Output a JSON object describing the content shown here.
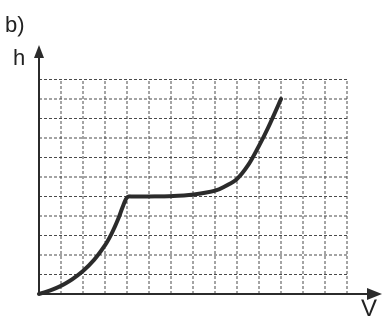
{
  "panel_label": "b)",
  "chart_data": {
    "type": "line",
    "title": "",
    "xlabel": "V",
    "ylabel": "h",
    "grid": true,
    "xlim": [
      0,
      13
    ],
    "ylim": [
      0,
      11
    ],
    "series": [
      {
        "values": [
          [
            0,
            0
          ],
          [
            0.5,
            0.18
          ],
          [
            1,
            0.42
          ],
          [
            1.5,
            0.75
          ],
          [
            2,
            1.18
          ],
          [
            2.5,
            1.75
          ],
          [
            3,
            2.5
          ],
          [
            3.3,
            3.1
          ],
          [
            3.6,
            3.85
          ],
          [
            3.8,
            4.45
          ],
          [
            4,
            4.95
          ],
          [
            4.3,
            5.0
          ],
          [
            5,
            5.0
          ],
          [
            6,
            5.02
          ],
          [
            7,
            5.1
          ],
          [
            8,
            5.3
          ],
          [
            8.5,
            5.55
          ],
          [
            9,
            5.9
          ],
          [
            9.5,
            6.6
          ],
          [
            10,
            7.6
          ],
          [
            10.4,
            8.5
          ],
          [
            11,
            10.0
          ]
        ]
      }
    ],
    "colors": {
      "curve": "#2b2b2b",
      "axis": "#2b2b2b",
      "grid": "#4a4a4a"
    }
  }
}
